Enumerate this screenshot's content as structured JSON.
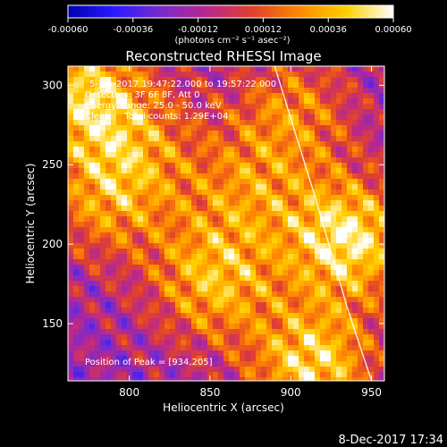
{
  "colorbar": {
    "ticks": [
      "-0.00060",
      "-0.00036",
      "-0.00012",
      "0.00012",
      "0.00036",
      "0.00060"
    ],
    "tick_values": [
      -0.0006,
      -0.00036,
      -0.00012,
      0.00012,
      0.00036,
      0.0006
    ],
    "units": "(photons cm⁻² s⁻¹ asec⁻²)",
    "range": [
      -0.0006,
      0.0006
    ],
    "colors": [
      "#0000b0",
      "#2a1aff",
      "#7a2acc",
      "#b8288e",
      "#e2422a",
      "#ff8a00",
      "#ffd000",
      "#ffffff"
    ]
  },
  "chart_data": {
    "type": "heatmap",
    "title": "Reconstructed RHESSI Image",
    "xlabel": "Heliocentric X (arcsec)",
    "ylabel": "Heliocentric Y (arcsec)",
    "xlim": [
      762,
      958
    ],
    "ylim": [
      114,
      312
    ],
    "x_ticks": [
      "800",
      "850",
      "900",
      "950"
    ],
    "x_tick_values": [
      800,
      850,
      900,
      950
    ],
    "y_ticks": [
      "150",
      "200",
      "250",
      "300"
    ],
    "y_tick_values": [
      150,
      200,
      250,
      300
    ],
    "annotations": [
      "5-Jun-2017 19:47:22.000 to 19:57:22.000",
      "Detectors: 3F 6F 8F, Att 0",
      "Energy Range: 25.0 - 50.0 keV",
      "Clean     Total counts: 1.29E+04"
    ],
    "peak_label": "Position of Peak = [934,205]",
    "peak": [
      934,
      205
    ],
    "limb_line": [
      [
        890,
        312
      ],
      [
        915,
        230
      ],
      [
        935,
        160
      ],
      [
        950,
        114
      ]
    ],
    "hotspots": [
      {
        "x": 934,
        "y": 205,
        "w": 1.0
      },
      {
        "x": 912,
        "y": 125,
        "w": 0.9
      },
      {
        "x": 850,
        "y": 178,
        "w": 0.75
      },
      {
        "x": 770,
        "y": 298,
        "w": 0.85
      },
      {
        "x": 900,
        "y": 285,
        "w": 0.55
      },
      {
        "x": 785,
        "y": 230,
        "w": 0.6
      },
      {
        "x": 870,
        "y": 235,
        "w": 0.5
      },
      {
        "x": 805,
        "y": 265,
        "w": 0.4
      }
    ]
  },
  "footer": {
    "date": "8-Dec-2017 17:34"
  }
}
